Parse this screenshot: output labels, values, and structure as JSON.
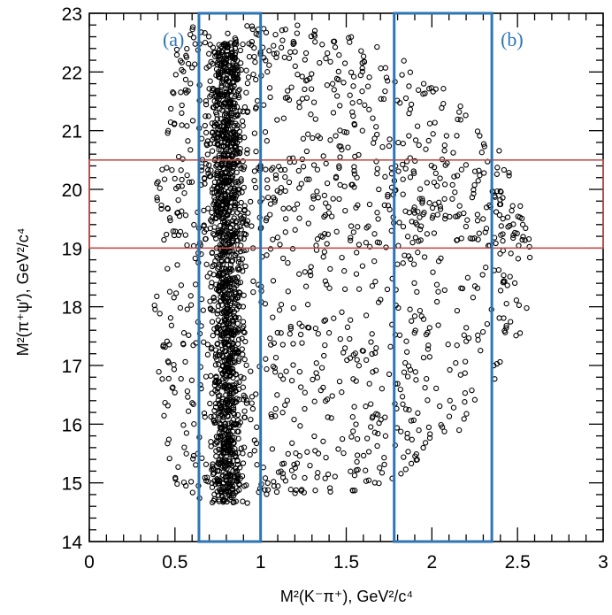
{
  "chart_data": {
    "type": "scatter",
    "title": "",
    "xlabel": "M²(K⁻π⁺), GeV²/c⁴",
    "ylabel": "M²(π⁺ψ′), GeV²/c⁴",
    "xlim": [
      0,
      3
    ],
    "ylim": [
      14,
      23
    ],
    "x_ticks": [
      "0",
      "0.5",
      "1",
      "1.5",
      "2",
      "2.5",
      "3"
    ],
    "y_ticks": [
      "14",
      "15",
      "16",
      "17",
      "18",
      "19",
      "20",
      "21",
      "22",
      "23"
    ],
    "marker": "open-circle",
    "marker_color": "#000000",
    "grid": false,
    "points_note_count": 2400,
    "kstar_band": {
      "x_center": 0.8,
      "x_sigma": 0.045,
      "y_range": [
        14.65,
        22.5
      ]
    },
    "highlight_boxes": [
      {
        "label": "(a)",
        "x_range": [
          0.64,
          1.0
        ],
        "y_range": [
          14.0,
          23.0
        ],
        "color": "#2e75b6"
      },
      {
        "label": "(b)",
        "x_range": [
          1.78,
          2.35
        ],
        "y_range": [
          14.0,
          23.0
        ],
        "color": "#2e75b6"
      }
    ],
    "signal_band": {
      "x_range": [
        0,
        3.0
      ],
      "y_range": [
        19.0,
        20.5
      ],
      "color": "#c0504d"
    }
  }
}
